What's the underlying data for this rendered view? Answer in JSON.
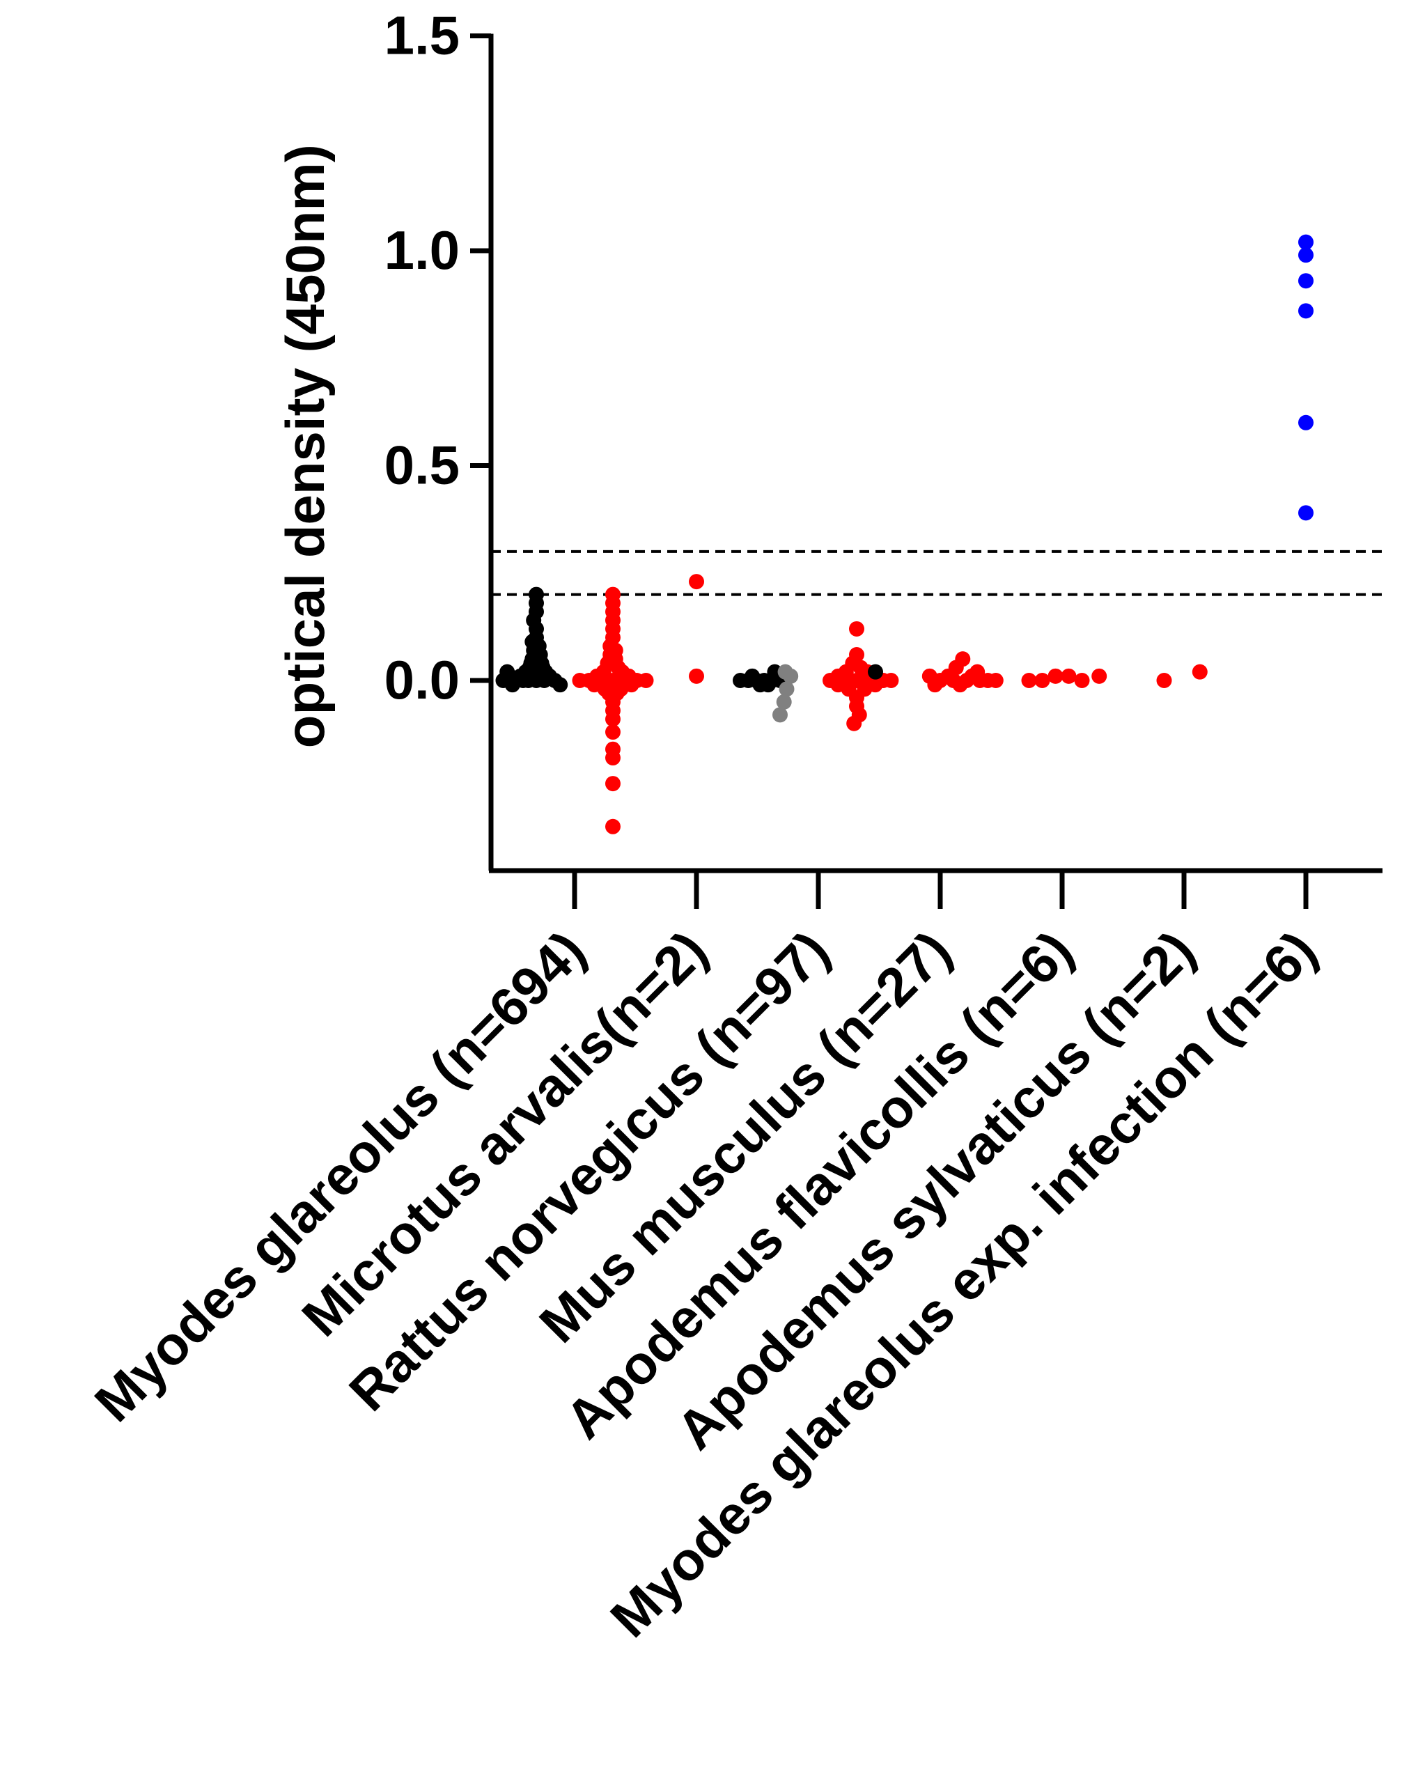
{
  "chart_data": {
    "type": "scatter",
    "title": "",
    "xlabel": "",
    "ylabel": "optical density (450nm)",
    "ylim": [
      -0.45,
      1.5
    ],
    "yticks": [
      0.0,
      0.5,
      1.0,
      1.5
    ],
    "ytick_labels": [
      "0.0",
      "0.5",
      "1.0",
      "1.5"
    ],
    "grid": false,
    "legend": "none",
    "categories": [
      "Myodes glareolus (n=694)",
      "Microtus arvalis(n=2)",
      "Rattus norvegicus (n=97)",
      "Mus musculus (n=27)",
      "Apodemus flavicollis (n=6)",
      "Apodemus sylvaticus (n=2)",
      "Myodes glareolus exp. infection (n=6)"
    ],
    "reference_lines": [
      0.3,
      0.2
    ],
    "colors": {
      "black": "#000000",
      "gray": "#808080",
      "red": "#ff0000",
      "blue": "#0000ff"
    },
    "series": [
      {
        "category_index": 0,
        "side": "left",
        "color": "black",
        "points": [
          {
            "y": 0.2,
            "offset": 0.0
          },
          {
            "y": 0.18,
            "offset": 0.0
          },
          {
            "y": 0.16,
            "offset": 0.0
          },
          {
            "y": 0.14,
            "offset": -0.02
          },
          {
            "y": 0.12,
            "offset": 0.0
          },
          {
            "y": 0.1,
            "offset": 0.0
          },
          {
            "y": 0.09,
            "offset": -0.03
          },
          {
            "y": 0.08,
            "offset": 0.02
          },
          {
            "y": 0.07,
            "offset": -0.02
          },
          {
            "y": 0.06,
            "offset": 0.03
          },
          {
            "y": 0.05,
            "offset": -0.03
          },
          {
            "y": 0.05,
            "offset": 0.02
          },
          {
            "y": 0.04,
            "offset": -0.04
          },
          {
            "y": 0.04,
            "offset": 0.04
          },
          {
            "y": 0.03,
            "offset": -0.05
          },
          {
            "y": 0.03,
            "offset": 0.05
          },
          {
            "y": 0.02,
            "offset": -0.08
          },
          {
            "y": 0.02,
            "offset": 0.07
          },
          {
            "y": 0.02,
            "offset": -0.22
          },
          {
            "y": 0.01,
            "offset": -0.12
          },
          {
            "y": 0.01,
            "offset": 0.1
          },
          {
            "y": 0.01,
            "offset": -0.2
          },
          {
            "y": 0.0,
            "offset": -0.16
          },
          {
            "y": 0.0,
            "offset": 0.14
          },
          {
            "y": 0.0,
            "offset": -0.25
          },
          {
            "y": 0.0,
            "offset": 0.0
          },
          {
            "y": 0.0,
            "offset": -0.06
          },
          {
            "y": 0.0,
            "offset": 0.06
          },
          {
            "y": -0.01,
            "offset": -0.18
          },
          {
            "y": -0.01,
            "offset": 0.18
          },
          {
            "y": 0.0,
            "offset": -0.1
          },
          {
            "y": 0.01,
            "offset": 0.02
          }
        ]
      },
      {
        "category_index": 0,
        "side": "right",
        "color": "red",
        "points": [
          {
            "y": 0.2,
            "offset": 0.0
          },
          {
            "y": 0.18,
            "offset": 0.0
          },
          {
            "y": 0.16,
            "offset": 0.0
          },
          {
            "y": 0.14,
            "offset": 0.0
          },
          {
            "y": 0.12,
            "offset": 0.0
          },
          {
            "y": 0.1,
            "offset": 0.0
          },
          {
            "y": 0.08,
            "offset": -0.02
          },
          {
            "y": 0.07,
            "offset": 0.02
          },
          {
            "y": 0.06,
            "offset": -0.02
          },
          {
            "y": 0.05,
            "offset": 0.02
          },
          {
            "y": 0.04,
            "offset": -0.04
          },
          {
            "y": 0.03,
            "offset": 0.04
          },
          {
            "y": 0.02,
            "offset": -0.07
          },
          {
            "y": 0.02,
            "offset": 0.07
          },
          {
            "y": 0.01,
            "offset": -0.12
          },
          {
            "y": 0.01,
            "offset": 0.12
          },
          {
            "y": 0.0,
            "offset": -0.25
          },
          {
            "y": 0.0,
            "offset": -0.18
          },
          {
            "y": 0.0,
            "offset": -0.1
          },
          {
            "y": 0.0,
            "offset": 0.0
          },
          {
            "y": 0.0,
            "offset": 0.1
          },
          {
            "y": 0.0,
            "offset": 0.18
          },
          {
            "y": 0.0,
            "offset": 0.25
          },
          {
            "y": -0.01,
            "offset": -0.14
          },
          {
            "y": -0.01,
            "offset": 0.14
          },
          {
            "y": -0.02,
            "offset": -0.06
          },
          {
            "y": -0.02,
            "offset": 0.06
          },
          {
            "y": -0.03,
            "offset": -0.03
          },
          {
            "y": -0.03,
            "offset": 0.03
          },
          {
            "y": -0.05,
            "offset": 0.0
          },
          {
            "y": -0.07,
            "offset": 0.0
          },
          {
            "y": -0.09,
            "offset": 0.0
          },
          {
            "y": -0.12,
            "offset": 0.0
          },
          {
            "y": -0.16,
            "offset": 0.0
          },
          {
            "y": -0.18,
            "offset": 0.0
          },
          {
            "y": -0.24,
            "offset": 0.0
          },
          {
            "y": -0.34,
            "offset": 0.0
          }
        ]
      },
      {
        "category_index": 1,
        "side": "center",
        "color": "red",
        "points": [
          {
            "y": 0.23,
            "offset": 0.0
          },
          {
            "y": 0.01,
            "offset": 0.0
          }
        ]
      },
      {
        "category_index": 2,
        "side": "left",
        "color": "black",
        "points": [
          {
            "y": 0.0,
            "offset": -0.3
          },
          {
            "y": 0.0,
            "offset": -0.24
          },
          {
            "y": 0.0,
            "offset": -0.18
          },
          {
            "y": 0.0,
            "offset": -0.12
          },
          {
            "y": 0.0,
            "offset": -0.06
          },
          {
            "y": 0.0,
            "offset": 0.0
          },
          {
            "y": 0.02,
            "offset": -0.04
          },
          {
            "y": -0.01,
            "offset": -0.09
          },
          {
            "y": -0.01,
            "offset": -0.15
          },
          {
            "y": 0.01,
            "offset": -0.21
          }
        ]
      },
      {
        "category_index": 2,
        "side": "left",
        "color": "gray",
        "points": [
          {
            "y": 0.02,
            "offset": 0.04
          },
          {
            "y": 0.01,
            "offset": 0.08
          },
          {
            "y": -0.02,
            "offset": 0.05
          },
          {
            "y": -0.05,
            "offset": 0.03
          },
          {
            "y": -0.08,
            "offset": 0.0
          }
        ]
      },
      {
        "category_index": 2,
        "side": "right",
        "color": "red",
        "points": [
          {
            "y": 0.12,
            "offset": 0.0
          },
          {
            "y": 0.06,
            "offset": 0.0
          },
          {
            "y": 0.04,
            "offset": -0.03
          },
          {
            "y": 0.03,
            "offset": 0.03
          },
          {
            "y": 0.02,
            "offset": -0.08
          },
          {
            "y": 0.02,
            "offset": 0.08
          },
          {
            "y": 0.01,
            "offset": -0.14
          },
          {
            "y": 0.01,
            "offset": 0.14
          },
          {
            "y": 0.0,
            "offset": -0.2
          },
          {
            "y": 0.0,
            "offset": -0.1
          },
          {
            "y": 0.0,
            "offset": 0.0
          },
          {
            "y": 0.0,
            "offset": 0.1
          },
          {
            "y": 0.0,
            "offset": 0.2
          },
          {
            "y": 0.0,
            "offset": 0.26
          },
          {
            "y": -0.01,
            "offset": -0.14
          },
          {
            "y": -0.01,
            "offset": 0.14
          },
          {
            "y": -0.02,
            "offset": -0.06
          },
          {
            "y": -0.02,
            "offset": 0.06
          },
          {
            "y": -0.04,
            "offset": 0.0
          },
          {
            "y": -0.06,
            "offset": 0.0
          },
          {
            "y": -0.08,
            "offset": 0.02
          },
          {
            "y": -0.1,
            "offset": -0.02
          }
        ]
      },
      {
        "category_index": 3,
        "side": "left",
        "color": "black",
        "points": [
          {
            "y": 0.02,
            "offset": -0.2
          }
        ]
      },
      {
        "category_index": 3,
        "side": "center",
        "color": "red",
        "points": [
          {
            "y": 0.05,
            "offset": 0.17
          },
          {
            "y": 0.03,
            "offset": 0.12
          },
          {
            "y": 0.02,
            "offset": 0.28
          },
          {
            "y": 0.01,
            "offset": -0.08
          },
          {
            "y": 0.01,
            "offset": 0.06
          },
          {
            "y": 0.0,
            "offset": 0.0
          },
          {
            "y": 0.0,
            "offset": 0.1
          },
          {
            "y": 0.0,
            "offset": 0.2
          },
          {
            "y": 0.0,
            "offset": 0.3
          },
          {
            "y": 0.0,
            "offset": 0.42
          },
          {
            "y": -0.01,
            "offset": -0.04
          },
          {
            "y": -0.01,
            "offset": 0.15
          },
          {
            "y": 0.0,
            "offset": 0.36
          },
          {
            "y": 0.01,
            "offset": 0.24
          }
        ]
      },
      {
        "category_index": 4,
        "side": "center",
        "color": "red",
        "points": [
          {
            "y": 0.0,
            "offset": -0.25
          },
          {
            "y": 0.0,
            "offset": -0.15
          },
          {
            "y": 0.01,
            "offset": -0.05
          },
          {
            "y": 0.01,
            "offset": 0.05
          },
          {
            "y": 0.0,
            "offset": 0.15
          },
          {
            "y": 0.01,
            "offset": 0.28
          }
        ]
      },
      {
        "category_index": 5,
        "side": "center",
        "color": "red",
        "points": [
          {
            "y": 0.0,
            "offset": -0.15
          },
          {
            "y": 0.02,
            "offset": 0.12
          }
        ]
      },
      {
        "category_index": 6,
        "side": "center",
        "color": "blue",
        "points": [
          {
            "y": 1.02,
            "offset": 0.0
          },
          {
            "y": 0.99,
            "offset": 0.0
          },
          {
            "y": 0.93,
            "offset": 0.0
          },
          {
            "y": 0.86,
            "offset": 0.0
          },
          {
            "y": 0.6,
            "offset": 0.0
          },
          {
            "y": 0.39,
            "offset": 0.0
          }
        ]
      }
    ]
  }
}
